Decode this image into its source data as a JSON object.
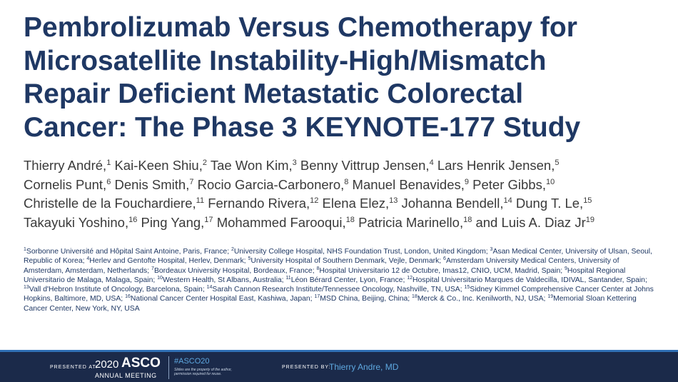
{
  "title_lines": [
    "Pembrolizumab Versus Chemotherapy for",
    "Microsatellite Instability-High/Mismatch",
    "Repair Deficient Metastatic Colorectal",
    "Cancer: The Phase 3 KEYNOTE-177 Study"
  ],
  "author_lines": [
    [
      {
        "name": "Thierry André,",
        "sup": "1"
      },
      {
        "name": "Kai-Keen Shiu,",
        "sup": "2"
      },
      {
        "name": "Tae Won Kim,",
        "sup": "3"
      },
      {
        "name": "Benny Vittrup Jensen,",
        "sup": "4"
      },
      {
        "name": "Lars Henrik Jensen,",
        "sup": "5"
      }
    ],
    [
      {
        "name": "Cornelis Punt,",
        "sup": "6"
      },
      {
        "name": "Denis Smith,",
        "sup": "7"
      },
      {
        "name": "Rocio Garcia-Carbonero,",
        "sup": "8"
      },
      {
        "name": "Manuel Benavides,",
        "sup": "9"
      },
      {
        "name": "Peter Gibbs,",
        "sup": "10"
      }
    ],
    [
      {
        "name": "Christelle de la Fouchardiere,",
        "sup": "11"
      },
      {
        "name": "Fernando Rivera,",
        "sup": "12"
      },
      {
        "name": "Elena Elez,",
        "sup": "13"
      },
      {
        "name": "Johanna Bendell,",
        "sup": "14"
      },
      {
        "name": "Dung T. Le,",
        "sup": "15"
      }
    ],
    [
      {
        "name": "Takayuki Yoshino,",
        "sup": "16"
      },
      {
        "name": "Ping Yang,",
        "sup": "17"
      },
      {
        "name": "Mohammed Farooqui,",
        "sup": "18"
      },
      {
        "name": "Patricia Marinello,",
        "sup": "18"
      },
      {
        "name": "and Luis A. Diaz Jr",
        "sup": "19"
      }
    ]
  ],
  "affiliations": [
    {
      "num": "1",
      "text": "Sorbonne Université and Hôpital Saint Antoine, Paris, France;"
    },
    {
      "num": "2",
      "text": "University College Hospital, NHS Foundation Trust, London, United Kingdom;"
    },
    {
      "num": "3",
      "text": "Asan Medical Center, University of Ulsan, Seoul, Republic of Korea;"
    },
    {
      "num": "4",
      "text": "Herlev and Gentofte Hospital, Herlev, Denmark;"
    },
    {
      "num": "5",
      "text": "University Hospital of Southern Denmark, Vejle, Denmark;"
    },
    {
      "num": "6",
      "text": "Amsterdam University Medical Centers, University of Amsterdam, Amsterdam, Netherlands;"
    },
    {
      "num": "7",
      "text": "Bordeaux University Hospital, Bordeaux, France;"
    },
    {
      "num": "8",
      "text": "Hospital Universitario 12 de Octubre, Imas12, CNIO, UCM, Madrid, Spain;"
    },
    {
      "num": "9",
      "text": "Hospital Regional Universitario de Malaga, Malaga, Spain;"
    },
    {
      "num": "10",
      "text": "Western Health, St Albans, Australia;"
    },
    {
      "num": "11",
      "text": "Léon Bérard Center, Lyon, France;"
    },
    {
      "num": "12",
      "text": "Hospital Universitario Marques de Valdecilla, IDIVAL,  Santander, Spain;"
    },
    {
      "num": "13",
      "text": "Vall d'Hebron Institute of Oncology, Barcelona, Spain;"
    },
    {
      "num": "14",
      "text": "Sarah Cannon Research Institute/Tennessee Oncology, Nashville, TN, USA;"
    },
    {
      "num": "15",
      "text": "Sidney Kimmel Comprehensive Cancer Center at Johns Hopkins, Baltimore, MD, USA;"
    },
    {
      "num": "16",
      "text": "National Cancer Center Hospital East, Kashiwa, Japan;"
    },
    {
      "num": "17",
      "text": "MSD China, Beijing, China;"
    },
    {
      "num": "18",
      "text": "Merck & Co., Inc.  Kenilworth, NJ, USA;"
    },
    {
      "num": "19",
      "text": "Memorial Sloan Kettering Cancer Center, New York, NY, USA"
    }
  ],
  "footer": {
    "presented_at": "PRESENTED AT:",
    "year": "2020",
    "asco": "ASCO",
    "meeting": "ANNUAL MEETING",
    "hashtag": "#ASCO20",
    "notice_lines": [
      "Slides are the property of the author,",
      "permission required for reuse."
    ],
    "presented_by": "PRESENTED BY:",
    "presenter": "Thierry Andre, MD"
  }
}
